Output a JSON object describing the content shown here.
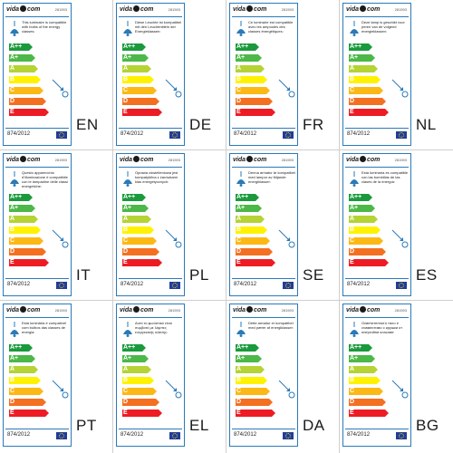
{
  "brand": {
    "left": "vida",
    "right": "com"
  },
  "product_code": "281593",
  "regulation": "874/2012",
  "energy_classes": [
    "A++",
    "A+",
    "A",
    "B",
    "C",
    "D",
    "E"
  ],
  "class_colors": [
    "#1a9a3c",
    "#4cb848",
    "#b5d334",
    "#fff200",
    "#fcb814",
    "#f37021",
    "#ed1c24"
  ],
  "icons": {
    "lamp": "lamp-icon",
    "bulb": "bulb-arrow-icon",
    "eu": "eu-flag-icon"
  },
  "panels": [
    {
      "lang": "EN",
      "text": "This luminaire is compatible with bulbs of the energy classes:"
    },
    {
      "lang": "DE",
      "text": "Diese Leuchte ist kompatibel mit den Leuchtmitteln der Energieklassen:"
    },
    {
      "lang": "FR",
      "text": "Ce luminaire est compatible avec les ampoules des classes énergétiques:"
    },
    {
      "lang": "NL",
      "text": "Deze lamp is geschikt voor peren van de volgend energieklassen:"
    },
    {
      "lang": "IT",
      "text": "Questo apparecchio d'illuminazione è compatibile con le lampadine delle classi energetiche:"
    },
    {
      "lang": "PL",
      "text": "Oprawa oświetleniowa jest kompatybilna z żarówkami klas energetycznych:"
    },
    {
      "lang": "SE",
      "text": "Denna armatur är kompatibel med lampor av följande energiklasser:"
    },
    {
      "lang": "ES",
      "text": "Esta luminaria es compatible con las bombillas de las clases de la energía:"
    },
    {
      "lang": "PT",
      "text": "Esta luminária é compatível com bulbos das classes de energia:"
    },
    {
      "lang": "EL",
      "text": "Αυτό το φωτιστικό είναι συμβατό με λάμπες ενεργειακής κλάσης:"
    },
    {
      "lang": "DA",
      "text": "Dette armatur er kompatibel med pærer af energiklasser:"
    },
    {
      "lang": "BG",
      "text": "Осветителното тяло е съвместимо с крушки от енергийни класове:"
    }
  ]
}
